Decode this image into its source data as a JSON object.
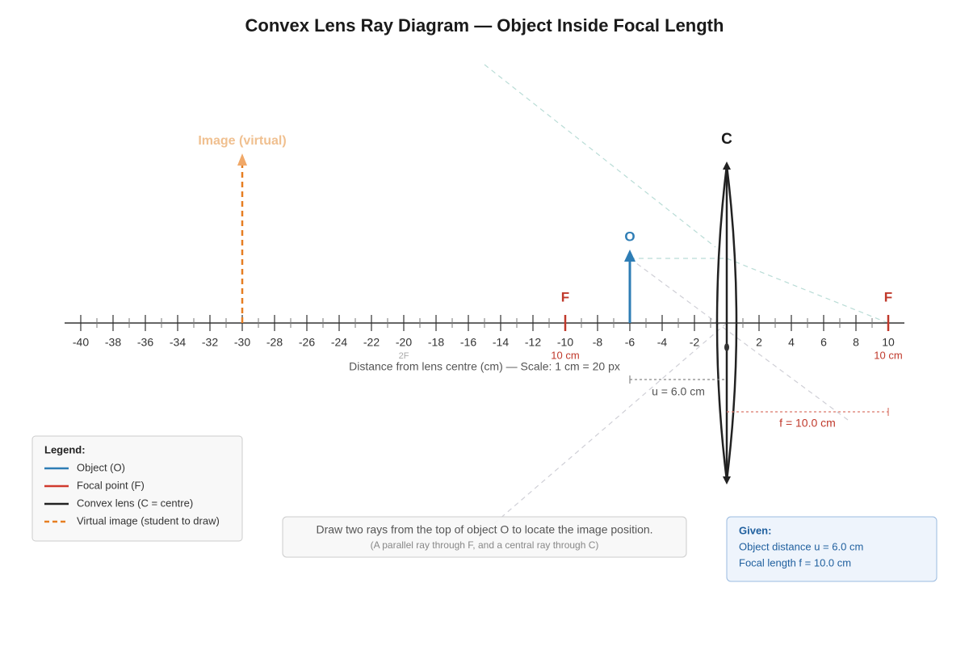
{
  "header": {
    "title": "Convex Lens Ray Diagram — Object Inside Focal Length"
  },
  "axis": {
    "ticks": [
      -40,
      -38,
      -36,
      -34,
      -32,
      -30,
      -28,
      -26,
      -24,
      -22,
      -20,
      -18,
      -16,
      -14,
      -12,
      -10,
      -8,
      -6,
      -4,
      -2,
      2,
      4,
      6,
      8,
      10
    ],
    "label": "Distance from lens centre (cm) — Scale: 1 cm = 20 px",
    "two_f": "2F"
  },
  "labels": {
    "image": "Image (virtual)",
    "lens": "C",
    "object": "O",
    "focal_left": "F",
    "focal_left_dist": "10 cm",
    "focal_right": "F",
    "focal_right_dist": "10 cm",
    "u": "u = 6.0 cm",
    "f": "f = 10.0 cm"
  },
  "legend": {
    "title": "Legend:",
    "items": [
      "Object (O)",
      "Focal point (F)",
      "Convex lens (C = centre)",
      "Virtual image (student to draw)"
    ]
  },
  "instruction": {
    "main": "Draw two rays from the top of object O to locate the image position.",
    "sub": "(A parallel ray through F, and a central ray through C)"
  },
  "given": {
    "title": "Given:",
    "lines": [
      "Object distance u = 6.0 cm",
      "Focal length f = 10.0 cm"
    ]
  }
}
